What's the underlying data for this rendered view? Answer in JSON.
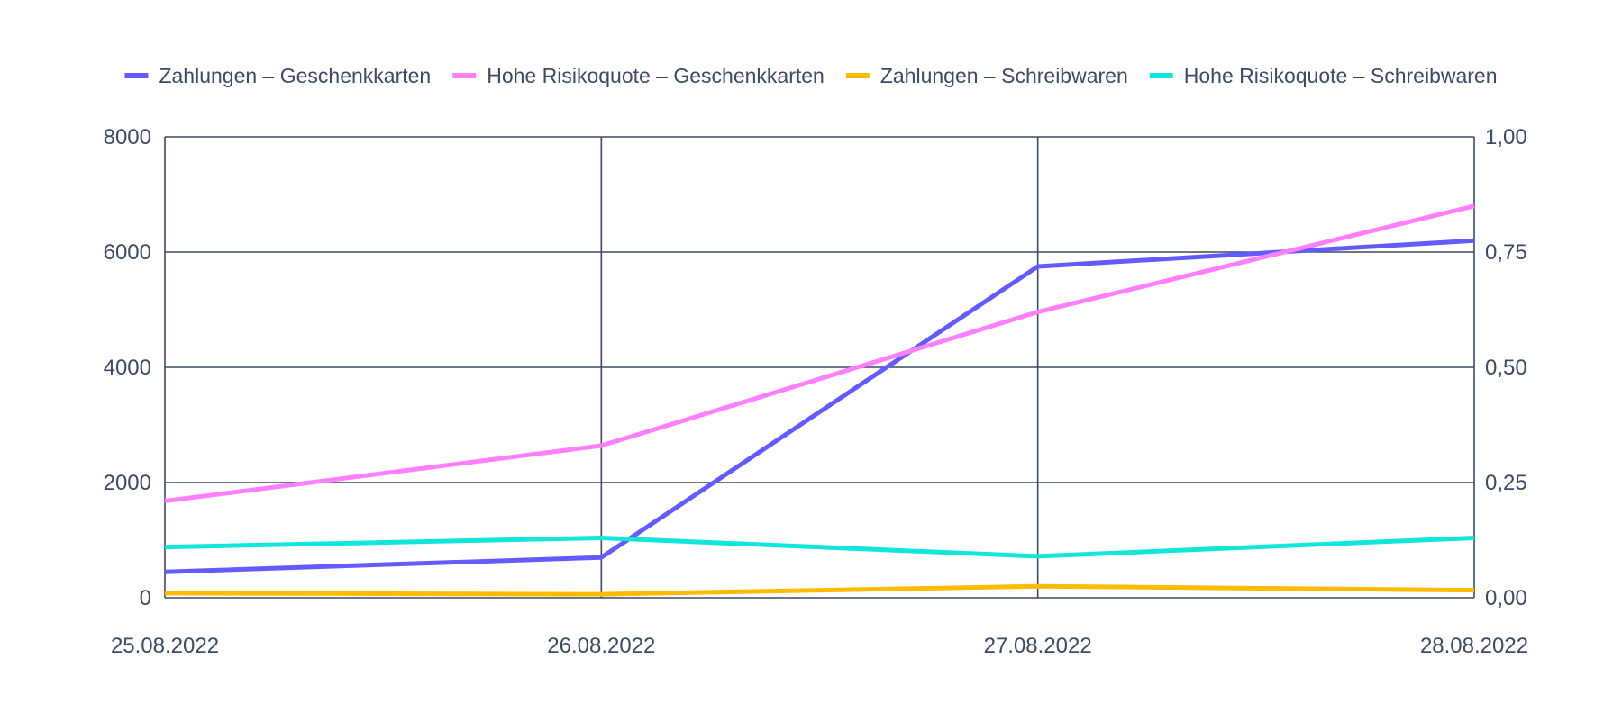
{
  "chart_data": {
    "type": "line",
    "title": "",
    "xlabel": "",
    "ylabel": "",
    "x": [
      "25.08.2022",
      "26.08.2022",
      "27.08.2022",
      "28.08.2022"
    ],
    "ylim": [
      0,
      8000
    ],
    "y_ticks": [
      "8000",
      "6000",
      "4000",
      "2000",
      "0"
    ],
    "y2lim": [
      0,
      1
    ],
    "y2_ticks": [
      "1,00",
      "0,75",
      "0,50",
      "0,25",
      "0,00"
    ],
    "grid": true,
    "legend_position": "top",
    "series": [
      {
        "name": "Zahlungen – Geschenkkarten",
        "axis": "left",
        "color": "#635bff",
        "values": [
          450,
          700,
          5750,
          6200
        ]
      },
      {
        "name": "Hohe Risikoquote – Geschenkkarten",
        "axis": "right",
        "color": "#ff80ff",
        "values": [
          0.21,
          0.33,
          0.62,
          0.85
        ]
      },
      {
        "name": "Zahlungen – Schreibwaren",
        "axis": "left",
        "color": "#ffbb00",
        "values": [
          80,
          60,
          200,
          130
        ]
      },
      {
        "name": "Hohe Risikoquote – Schreibwaren",
        "axis": "right",
        "color": "#12e6db",
        "values": [
          0.11,
          0.13,
          0.09,
          0.13
        ]
      }
    ]
  }
}
